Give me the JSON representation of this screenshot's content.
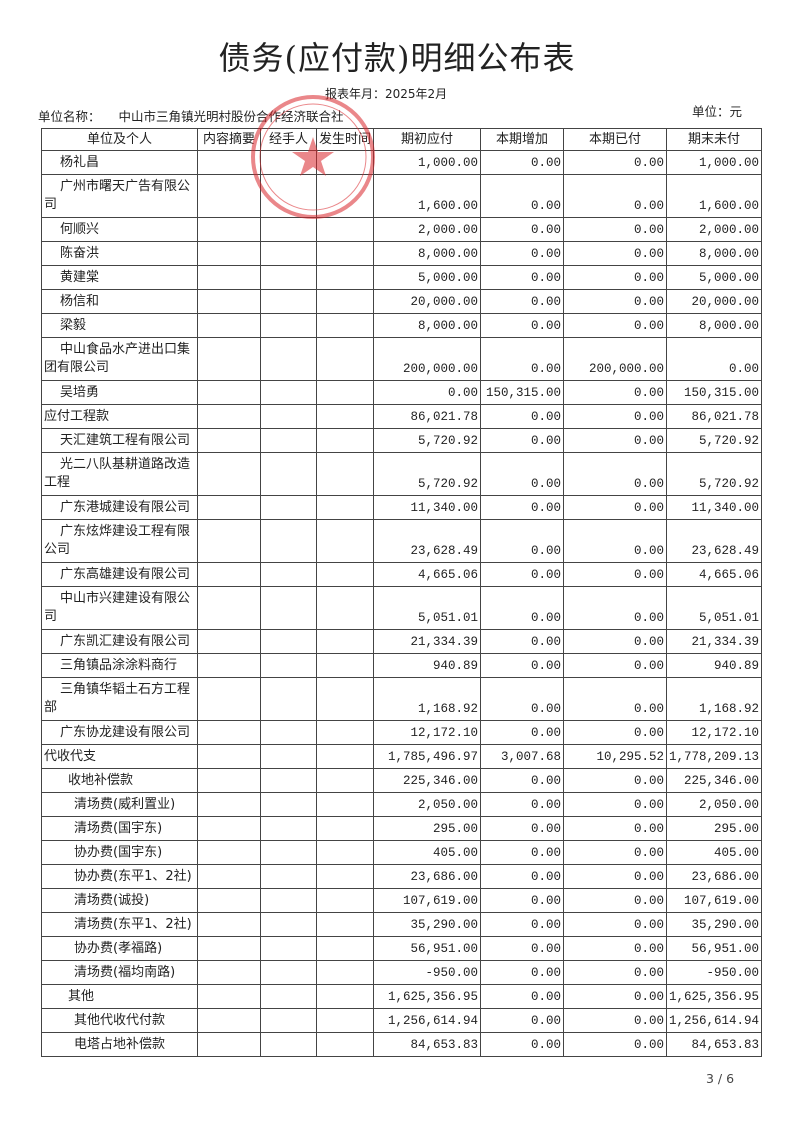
{
  "title": "债务(应付款)明细公布表",
  "period_label": "报表年月：2025年2月",
  "unit_name_label": "单位名称：",
  "unit_name": "中山市三角镇光明村股份合作经济联合社",
  "currency_label": "单位：元",
  "stamp_text": "中山市三角镇光明村股份合作经济联合社",
  "stamp_color": "#d9262b",
  "columns": [
    "单位及个人",
    "内容摘要",
    "经手人",
    "发生时间",
    "期初应付",
    "本期增加",
    "本期已付",
    "期末未付"
  ],
  "rows": [
    {
      "name": "杨礼昌",
      "level": "l1",
      "double": false,
      "v": [
        "1,000.00",
        "0.00",
        "0.00",
        "1,000.00"
      ]
    },
    {
      "name": "广州市曙天广告有限公司",
      "level": "l1",
      "double": true,
      "v": [
        "1,600.00",
        "0.00",
        "0.00",
        "1,600.00"
      ]
    },
    {
      "name": "何顺兴",
      "level": "l1",
      "double": false,
      "v": [
        "2,000.00",
        "0.00",
        "0.00",
        "2,000.00"
      ]
    },
    {
      "name": "陈奋洪",
      "level": "l1",
      "double": false,
      "v": [
        "8,000.00",
        "0.00",
        "0.00",
        "8,000.00"
      ]
    },
    {
      "name": "黄建棠",
      "level": "l1",
      "double": false,
      "v": [
        "5,000.00",
        "0.00",
        "0.00",
        "5,000.00"
      ]
    },
    {
      "name": "杨信和",
      "level": "l1",
      "double": false,
      "v": [
        "20,000.00",
        "0.00",
        "0.00",
        "20,000.00"
      ]
    },
    {
      "name": "梁毅",
      "level": "l1",
      "double": false,
      "v": [
        "8,000.00",
        "0.00",
        "0.00",
        "8,000.00"
      ]
    },
    {
      "name": "中山食品水产进出口集团有限公司",
      "level": "l1",
      "double": true,
      "v": [
        "200,000.00",
        "0.00",
        "200,000.00",
        "0.00"
      ]
    },
    {
      "name": "吴培勇",
      "level": "l1",
      "double": false,
      "v": [
        "0.00",
        "150,315.00",
        "0.00",
        "150,315.00"
      ]
    },
    {
      "name": "应付工程款",
      "level": "l0",
      "double": false,
      "v": [
        "86,021.78",
        "0.00",
        "0.00",
        "86,021.78"
      ]
    },
    {
      "name": "天汇建筑工程有限公司",
      "level": "l1",
      "double": false,
      "v": [
        "5,720.92",
        "0.00",
        "0.00",
        "5,720.92"
      ]
    },
    {
      "name": "光二八队基耕道路改造工程",
      "level": "l1",
      "double": true,
      "v": [
        "5,720.92",
        "0.00",
        "0.00",
        "5,720.92"
      ]
    },
    {
      "name": "广东港城建设有限公司",
      "level": "l1",
      "double": false,
      "v": [
        "11,340.00",
        "0.00",
        "0.00",
        "11,340.00"
      ]
    },
    {
      "name": "广东炫烨建设工程有限公司",
      "level": "l1",
      "double": true,
      "v": [
        "23,628.49",
        "0.00",
        "0.00",
        "23,628.49"
      ]
    },
    {
      "name": "广东高雄建设有限公司",
      "level": "l1",
      "double": false,
      "v": [
        "4,665.06",
        "0.00",
        "0.00",
        "4,665.06"
      ]
    },
    {
      "name": "中山市兴建建设有限公司",
      "level": "l1",
      "double": true,
      "v": [
        "5,051.01",
        "0.00",
        "0.00",
        "5,051.01"
      ]
    },
    {
      "name": "广东凯汇建设有限公司",
      "level": "l1",
      "double": false,
      "v": [
        "21,334.39",
        "0.00",
        "0.00",
        "21,334.39"
      ]
    },
    {
      "name": "三角镇品涂涂料商行",
      "level": "l1",
      "double": false,
      "v": [
        "940.89",
        "0.00",
        "0.00",
        "940.89"
      ]
    },
    {
      "name": "三角镇华韬土石方工程部",
      "level": "l1",
      "double": true,
      "v": [
        "1,168.92",
        "0.00",
        "0.00",
        "1,168.92"
      ]
    },
    {
      "name": "广东协龙建设有限公司",
      "level": "l1",
      "double": false,
      "v": [
        "12,172.10",
        "0.00",
        "0.00",
        "12,172.10"
      ]
    },
    {
      "name": "代收代支",
      "level": "l0",
      "double": false,
      "v": [
        "1,785,496.97",
        "3,007.68",
        "10,295.52",
        "1,778,209.13"
      ]
    },
    {
      "name": "收地补偿款",
      "level": "l1b",
      "double": false,
      "v": [
        "225,346.00",
        "0.00",
        "0.00",
        "225,346.00"
      ]
    },
    {
      "name": "清场费(威利置业)",
      "level": "l2",
      "double": false,
      "v": [
        "2,050.00",
        "0.00",
        "0.00",
        "2,050.00"
      ]
    },
    {
      "name": "清场费(国宇东)",
      "level": "l2",
      "double": false,
      "v": [
        "295.00",
        "0.00",
        "0.00",
        "295.00"
      ]
    },
    {
      "name": "协办费(国宇东)",
      "level": "l2",
      "double": false,
      "v": [
        "405.00",
        "0.00",
        "0.00",
        "405.00"
      ]
    },
    {
      "name": "协办费(东平1、2社)",
      "level": "l2",
      "double": false,
      "v": [
        "23,686.00",
        "0.00",
        "0.00",
        "23,686.00"
      ]
    },
    {
      "name": "清场费(诚投)",
      "level": "l2",
      "double": false,
      "v": [
        "107,619.00",
        "0.00",
        "0.00",
        "107,619.00"
      ]
    },
    {
      "name": "清场费(东平1、2社)",
      "level": "l2",
      "double": false,
      "v": [
        "35,290.00",
        "0.00",
        "0.00",
        "35,290.00"
      ]
    },
    {
      "name": "协办费(孝福路)",
      "level": "l2",
      "double": false,
      "v": [
        "56,951.00",
        "0.00",
        "0.00",
        "56,951.00"
      ]
    },
    {
      "name": "清场费(福均南路)",
      "level": "l2",
      "double": false,
      "v": [
        "-950.00",
        "0.00",
        "0.00",
        "-950.00"
      ]
    },
    {
      "name": "其他",
      "level": "l1b",
      "double": false,
      "v": [
        "1,625,356.95",
        "0.00",
        "0.00",
        "1,625,356.95"
      ]
    },
    {
      "name": "其他代收代付款",
      "level": "l2",
      "double": false,
      "v": [
        "1,256,614.94",
        "0.00",
        "0.00",
        "1,256,614.94"
      ]
    },
    {
      "name": "电塔占地补偿款",
      "level": "l2",
      "double": false,
      "v": [
        "84,653.83",
        "0.00",
        "0.00",
        "84,653.83"
      ]
    }
  ],
  "page_number": "3 / 6"
}
